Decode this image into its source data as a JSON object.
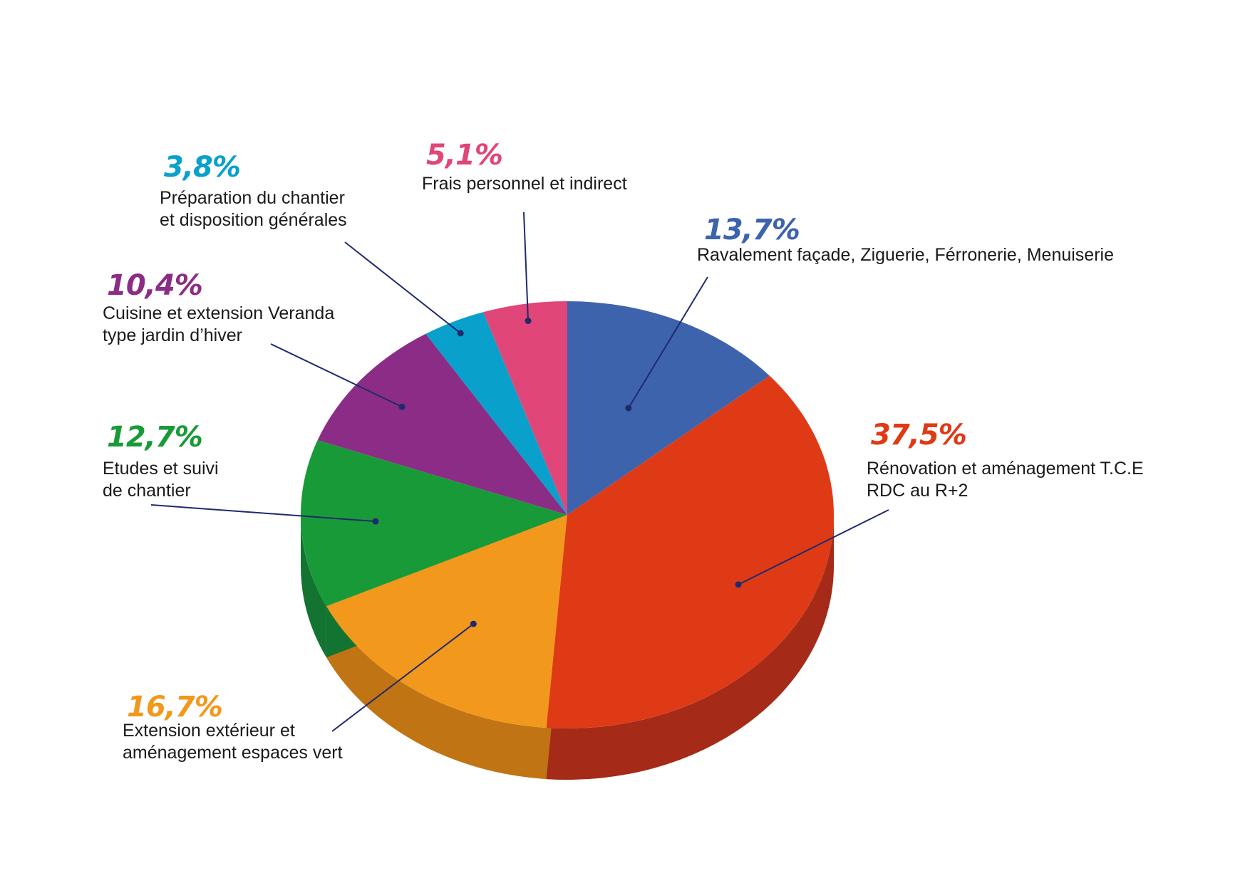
{
  "chart_data": {
    "type": "pie",
    "style": "3d",
    "start": "12 o'clock",
    "direction": "clockwise",
    "slices": [
      {
        "label_lines": [
          "Ravalement façade, Ziguerie, Férronerie, Menuiserie"
        ],
        "pct_label": "13,7%",
        "value": 13.7,
        "color": "#3e63ad",
        "side_color": "#2b4a86"
      },
      {
        "label_lines": [
          "Rénovation et aménagement T.C.E",
          "RDC au R+2"
        ],
        "pct_label": "37,5%",
        "value": 37.5,
        "color": "#df3a16",
        "side_color": "#a52a18"
      },
      {
        "label_lines": [
          "Extension extérieur et",
          "aménagement espaces vert"
        ],
        "pct_label": "16,7%",
        "value": 16.7,
        "color": "#f2981c",
        "side_color": "#c07413"
      },
      {
        "label_lines": [
          "Etudes et suivi",
          "de chantier"
        ],
        "pct_label": "12,7%",
        "value": 12.7,
        "color": "#199a38",
        "side_color": "#137432"
      },
      {
        "label_lines": [
          "Cuisine et extension Veranda",
          "type jardin d’hiver"
        ],
        "pct_label": "10,4%",
        "value": 10.4,
        "color": "#8b2d86",
        "side_color": "#6a2166"
      },
      {
        "label_lines": [
          "Préparation du chantier",
          "et disposition générales"
        ],
        "pct_label": "3,8%",
        "value": 3.8,
        "color": "#0aa0cc",
        "side_color": "#07789a"
      },
      {
        "label_lines": [
          "Frais personnel et indirect"
        ],
        "pct_label": "5,1%",
        "value": 5.1,
        "color": "#e04677",
        "side_color": "#ab3359"
      }
    ],
    "leader_color": "#1f2a6e"
  }
}
